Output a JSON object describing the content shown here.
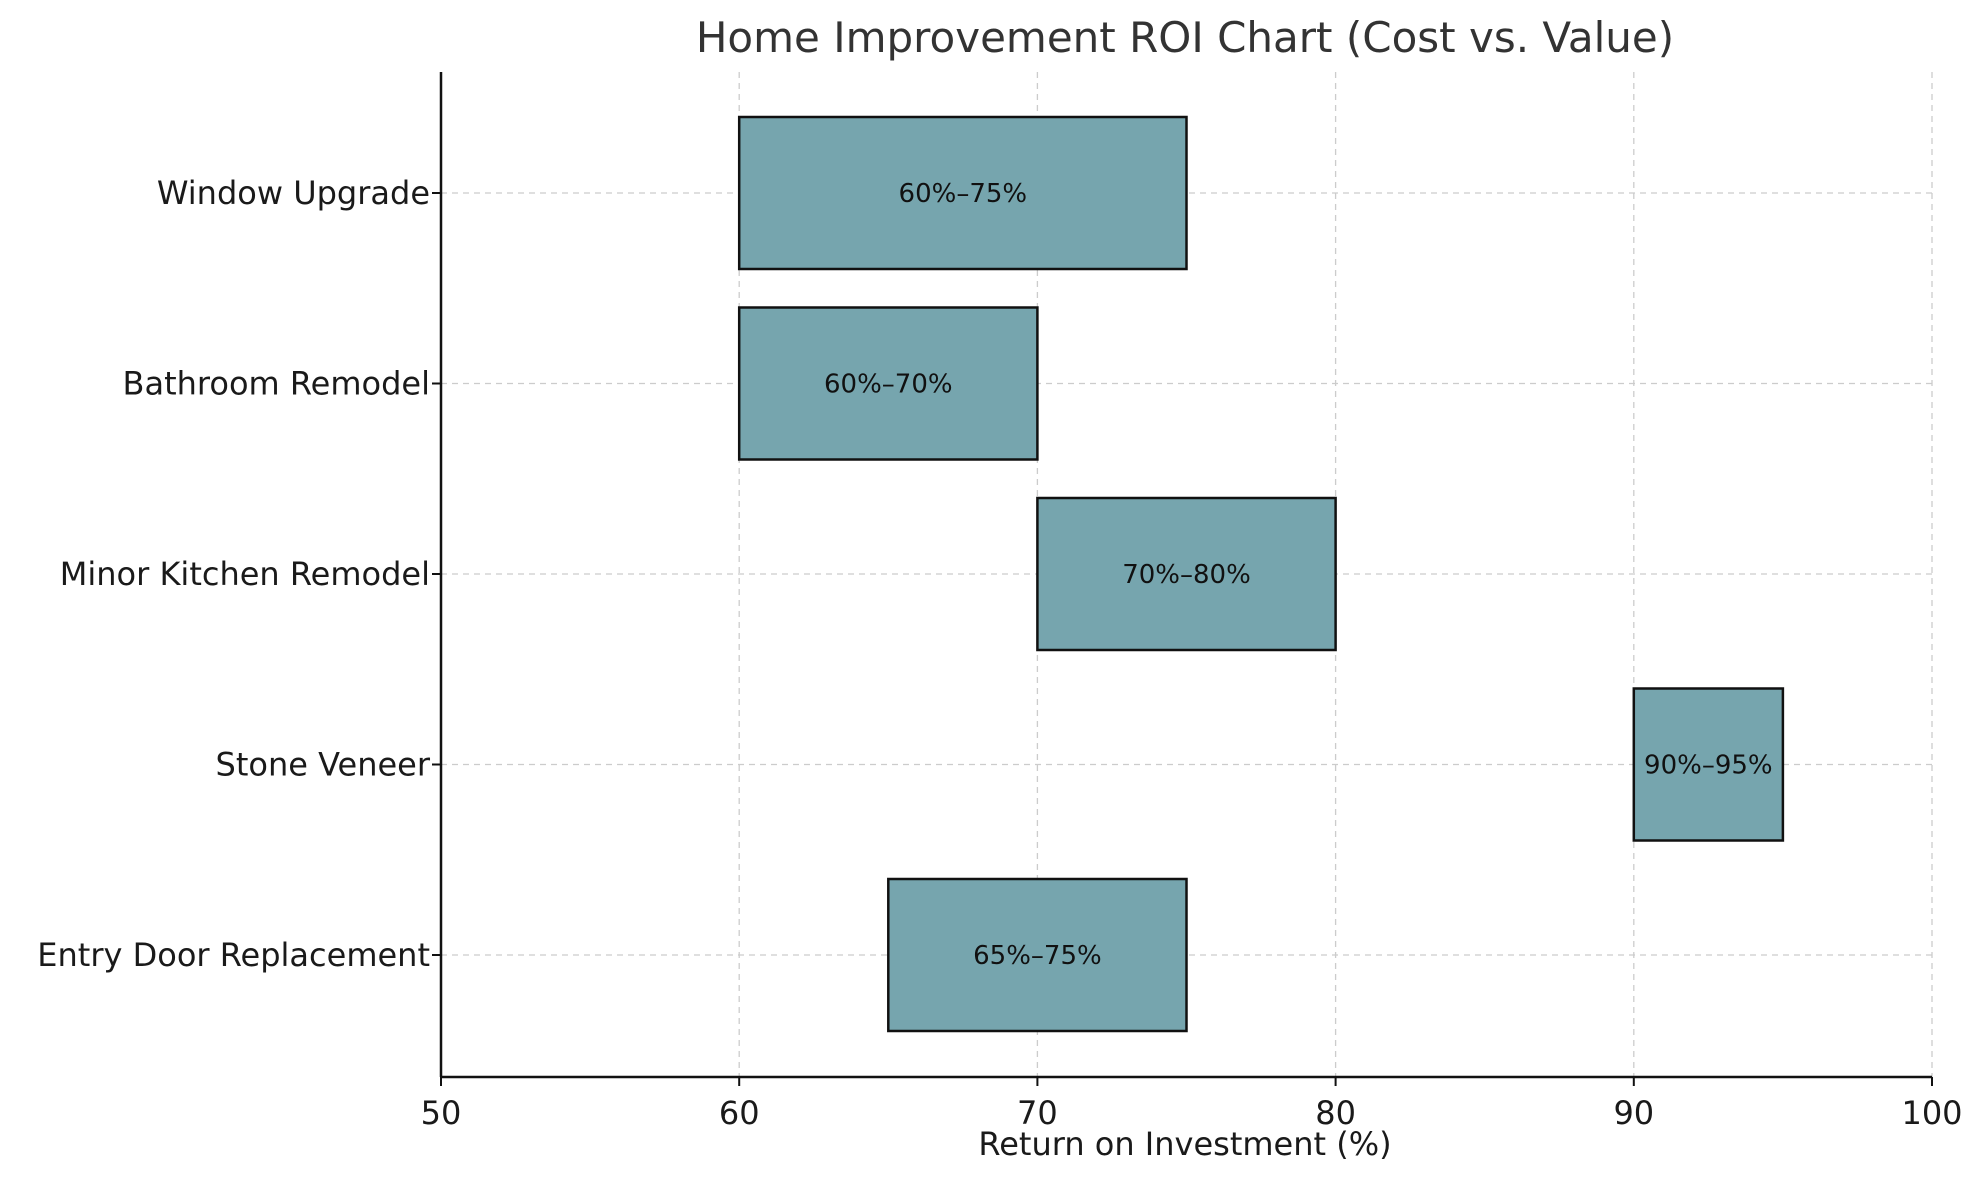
{
  "chart_data": {
    "type": "bar",
    "orientation": "horizontal",
    "title": "Home Improvement ROI Chart (Cost vs. Value)",
    "xlabel": "Return on Investment (%)",
    "ylabel": "",
    "xlim": [
      50,
      100
    ],
    "xticks": [
      50,
      60,
      70,
      80,
      90,
      100
    ],
    "grid": true,
    "bar_color": "#76a5ae",
    "edge_color": "#111111",
    "categories": [
      "Window Upgrade",
      "Bathroom Remodel",
      "Minor Kitchen Remodel",
      "Stone Veneer",
      "Entry Door Replacement"
    ],
    "ranges": [
      {
        "start": 60,
        "end": 75,
        "label": "60%–75%"
      },
      {
        "start": 60,
        "end": 70,
        "label": "60%–70%"
      },
      {
        "start": 70,
        "end": 80,
        "label": "70%–80%"
      },
      {
        "start": 90,
        "end": 95,
        "label": "90%–95%"
      },
      {
        "start": 65,
        "end": 75,
        "label": "65%–75%"
      }
    ]
  }
}
